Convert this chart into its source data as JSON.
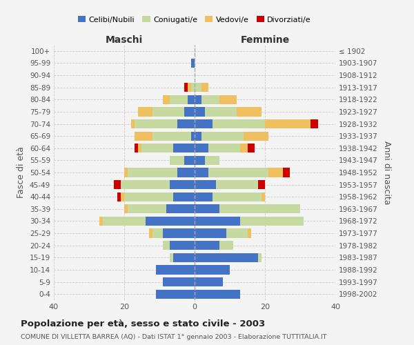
{
  "age_groups": [
    "100+",
    "95-99",
    "90-94",
    "85-89",
    "80-84",
    "75-79",
    "70-74",
    "65-69",
    "60-64",
    "55-59",
    "50-54",
    "45-49",
    "40-44",
    "35-39",
    "30-34",
    "25-29",
    "20-24",
    "15-19",
    "10-14",
    "5-9",
    "0-4"
  ],
  "birth_years": [
    "≤ 1902",
    "1903-1907",
    "1908-1912",
    "1913-1917",
    "1918-1922",
    "1923-1927",
    "1928-1932",
    "1933-1937",
    "1938-1942",
    "1943-1947",
    "1948-1952",
    "1953-1957",
    "1958-1962",
    "1963-1967",
    "1968-1972",
    "1973-1977",
    "1978-1982",
    "1983-1987",
    "1988-1992",
    "1993-1997",
    "1998-2002"
  ],
  "male_celibe": [
    0,
    1,
    0,
    0,
    2,
    3,
    5,
    1,
    6,
    3,
    5,
    7,
    6,
    8,
    14,
    9,
    7,
    6,
    11,
    9,
    11
  ],
  "male_coniugato": [
    0,
    0,
    0,
    1,
    5,
    9,
    12,
    11,
    9,
    4,
    14,
    14,
    14,
    11,
    12,
    3,
    2,
    1,
    0,
    0,
    0
  ],
  "male_vedovo": [
    0,
    0,
    0,
    1,
    2,
    4,
    1,
    5,
    1,
    0,
    1,
    0,
    1,
    1,
    1,
    1,
    0,
    0,
    0,
    0,
    0
  ],
  "male_divorziato": [
    0,
    0,
    0,
    1,
    0,
    0,
    0,
    0,
    1,
    0,
    0,
    2,
    1,
    0,
    0,
    0,
    0,
    0,
    0,
    0,
    0
  ],
  "female_celibe": [
    0,
    0,
    0,
    0,
    2,
    3,
    5,
    2,
    4,
    3,
    4,
    6,
    5,
    7,
    13,
    9,
    7,
    18,
    10,
    8,
    13
  ],
  "female_coniugato": [
    0,
    0,
    0,
    2,
    5,
    9,
    15,
    12,
    9,
    4,
    17,
    12,
    14,
    23,
    18,
    6,
    4,
    1,
    0,
    0,
    0
  ],
  "female_vedovo": [
    0,
    0,
    0,
    2,
    5,
    7,
    13,
    7,
    2,
    0,
    4,
    0,
    1,
    0,
    0,
    1,
    0,
    0,
    0,
    0,
    0
  ],
  "female_divorziato": [
    0,
    0,
    0,
    0,
    0,
    0,
    2,
    0,
    2,
    0,
    2,
    2,
    0,
    0,
    0,
    0,
    0,
    0,
    0,
    0,
    0
  ],
  "colors": {
    "celibe": "#4472c4",
    "coniugato": "#c5d9a0",
    "vedovo": "#f0c060",
    "divorziato": "#cc0000"
  },
  "xlim": 40,
  "title": "Popolazione per età, sesso e stato civile - 2003",
  "subtitle": "COMUNE DI VILLETTA BARREA (AQ) - Dati ISTAT 1° gennaio 2003 - Elaborazione TUTTITALIA.IT",
  "ylabel_left": "Fasce di età",
  "ylabel_right": "Anni di nascita",
  "xlabel_male": "Maschi",
  "xlabel_female": "Femmine",
  "bg_color": "#f4f4f4",
  "grid_color": "#cccccc"
}
